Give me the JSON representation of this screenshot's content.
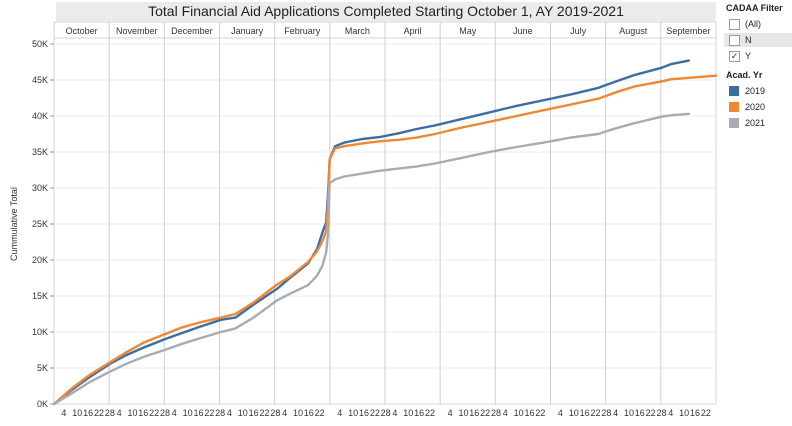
{
  "chart_data": {
    "type": "line",
    "title": "Total Financial Aid Applications Completed Starting October 1, AY 2019-2021",
    "ylabel": "Cummulative Total",
    "xlabel": "",
    "ylim": [
      0,
      50000
    ],
    "yticks": [
      "0K",
      "5K",
      "10K",
      "15K",
      "20K",
      "25K",
      "30K",
      "35K",
      "40K",
      "45K",
      "50K"
    ],
    "ytick_values": [
      0,
      5000,
      10000,
      15000,
      20000,
      25000,
      30000,
      35000,
      40000,
      45000,
      50000
    ],
    "months": [
      "October",
      "November",
      "December",
      "January",
      "February",
      "March",
      "April",
      "May",
      "June",
      "July",
      "August",
      "September"
    ],
    "day_ticks": [
      [
        "4",
        "10",
        "16",
        "22",
        "28"
      ],
      [
        "4",
        "10",
        "16",
        "22",
        "28"
      ],
      [
        "4",
        "10",
        "16",
        "22",
        "28"
      ],
      [
        "4",
        "10",
        "16",
        "22",
        "28"
      ],
      [
        "4",
        "10",
        "16",
        "22"
      ],
      [
        "4",
        "10",
        "16",
        "22",
        "28"
      ],
      [
        "4",
        "10",
        "16",
        "22"
      ],
      [
        "4",
        "10",
        "16",
        "22",
        "28"
      ],
      [
        "4",
        "10",
        "16",
        "22"
      ],
      [
        "4",
        "10",
        "16",
        "22",
        "28"
      ],
      [
        "4",
        "10",
        "16",
        "22",
        "28"
      ],
      [
        "4",
        "10",
        "16",
        "22"
      ]
    ],
    "grid": true,
    "legend_position": "right",
    "series": [
      {
        "name": "2019",
        "color": "#3a6ea5",
        "x": [
          0,
          10,
          20,
          31,
          40,
          50,
          61,
          70,
          80,
          92,
          100,
          110,
          123,
          130,
          140,
          145,
          148,
          150,
          151,
          152,
          155,
          160,
          170,
          180,
          190,
          200,
          210,
          225,
          240,
          255,
          270,
          285,
          300,
          310,
          320,
          335,
          340,
          350
        ],
        "y": [
          0,
          2000,
          3800,
          5600,
          6800,
          7900,
          9000,
          9800,
          10700,
          11700,
          12000,
          13800,
          16000,
          17500,
          19500,
          21500,
          23800,
          25200,
          28800,
          34000,
          35800,
          36300,
          36800,
          37100,
          37600,
          38200,
          38700,
          39600,
          40500,
          41400,
          42200,
          43000,
          43900,
          44800,
          45700,
          46700,
          47200,
          47700
        ]
      },
      {
        "name": "2020",
        "color": "#ef8834",
        "x": [
          0,
          10,
          20,
          31,
          40,
          50,
          61,
          70,
          80,
          92,
          100,
          110,
          123,
          130,
          140,
          145,
          148,
          150,
          151,
          152,
          155,
          160,
          170,
          180,
          190,
          200,
          210,
          225,
          240,
          255,
          270,
          285,
          300,
          310,
          320,
          335,
          340,
          350,
          365
        ],
        "y": [
          0,
          2200,
          4100,
          5800,
          7200,
          8600,
          9700,
          10600,
          11300,
          12000,
          12500,
          14100,
          16600,
          17700,
          19700,
          21200,
          22600,
          24000,
          27500,
          34000,
          35500,
          35800,
          36200,
          36500,
          36700,
          37000,
          37500,
          38400,
          39200,
          40000,
          40800,
          41600,
          42400,
          43300,
          44100,
          44800,
          45100,
          45300,
          45600
        ]
      },
      {
        "name": "2021",
        "color": "#a9abb4",
        "x": [
          0,
          10,
          20,
          31,
          40,
          50,
          61,
          70,
          80,
          92,
          100,
          110,
          123,
          130,
          140,
          145,
          148,
          150,
          151,
          152,
          155,
          160,
          170,
          180,
          190,
          200,
          210,
          225,
          240,
          255,
          270,
          285,
          300,
          310,
          320,
          335,
          340,
          350
        ],
        "y": [
          0,
          1500,
          3100,
          4500,
          5600,
          6600,
          7500,
          8300,
          9100,
          10000,
          10500,
          12000,
          14400,
          15300,
          16500,
          17800,
          19200,
          21000,
          23500,
          30700,
          31200,
          31600,
          32000,
          32400,
          32700,
          33000,
          33400,
          34200,
          35000,
          35700,
          36300,
          37000,
          37500,
          38300,
          39000,
          39900,
          40100,
          40300
        ]
      }
    ]
  },
  "legend": {
    "filter_title": "CADAA Filter",
    "filter_items": [
      {
        "label": "(All)",
        "checked": false,
        "mark": ""
      },
      {
        "label": "N",
        "checked": false,
        "mark": ""
      },
      {
        "label": "Y",
        "checked": true,
        "mark": "✓"
      }
    ],
    "year_title": "Acad. Yr",
    "year_items": [
      {
        "label": "2019",
        "color": "#3a6ea5"
      },
      {
        "label": "2020",
        "color": "#ef8834"
      },
      {
        "label": "2021",
        "color": "#a9abb4"
      }
    ]
  }
}
